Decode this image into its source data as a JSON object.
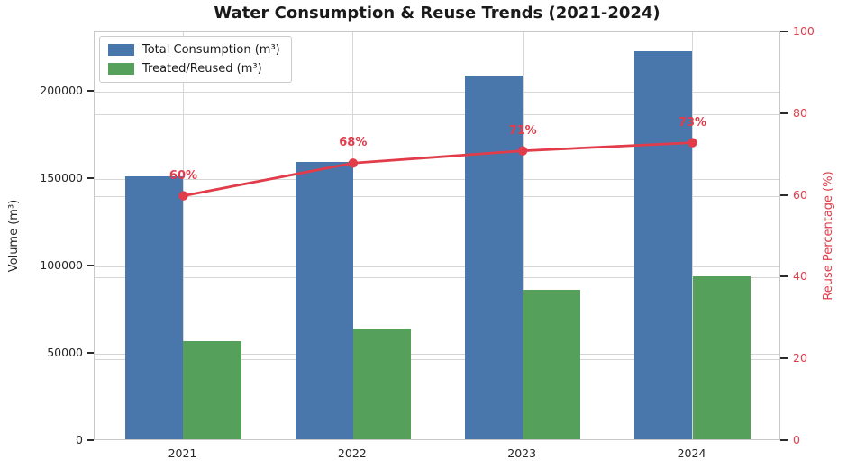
{
  "chart_data": {
    "type": "bar",
    "title": "Water Consumption & Reuse Trends (2021-2024)",
    "categories": [
      "2021",
      "2022",
      "2023",
      "2024"
    ],
    "series": [
      {
        "name": "Total Consumption (m³)",
        "type": "bar",
        "axis": "left",
        "color": "#4a77ab",
        "values": [
          150500,
          159000,
          208000,
          222000
        ]
      },
      {
        "name": "Treated/Reused (m³)",
        "type": "bar",
        "axis": "left",
        "color": "#55a05a",
        "values": [
          56000,
          63500,
          85500,
          93500
        ]
      },
      {
        "name": "Reuse Percentage (%)",
        "type": "line",
        "axis": "right",
        "color": "#e23c4a",
        "values": [
          60,
          68,
          71,
          73
        ],
        "point_labels": [
          "60%",
          "68%",
          "71%",
          "73%"
        ]
      }
    ],
    "ylabel_left": "Volume (m³)",
    "ylabel_right": "Reuse Percentage (%)",
    "yticks_left": [
      0,
      50000,
      100000,
      150000,
      200000
    ],
    "yticks_right": [
      0,
      20,
      40,
      60,
      80,
      100
    ],
    "ylim_left": [
      0,
      234000
    ],
    "ylim_right": [
      0,
      100
    ],
    "grid": true,
    "legend_position": "upper left",
    "legend_entries": [
      "Total Consumption (m³)",
      "Treated/Reused (m³)"
    ]
  },
  "colors": {
    "bar_blue": "#4a77ab",
    "bar_green": "#55a05a",
    "line_red": "#e23c4a",
    "grid": "#d6d6d6",
    "spine": "#c9c9c9",
    "tick_text": "#262626"
  }
}
